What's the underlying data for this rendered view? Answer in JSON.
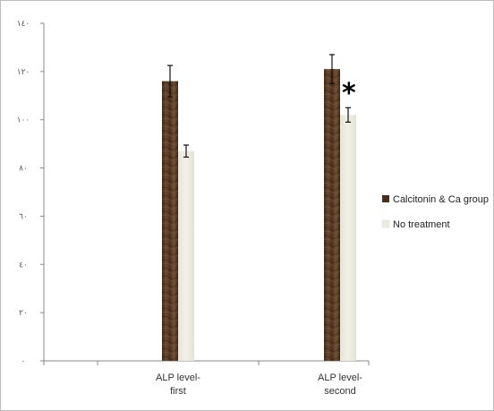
{
  "chart_data": {
    "type": "bar",
    "categories": [
      [
        "ALP level-",
        "first"
      ],
      [
        "ALP level-",
        "second"
      ]
    ],
    "series": [
      {
        "name": "Calcitonin & Ca group",
        "values": [
          116,
          121
        ],
        "errors": [
          6.5,
          6
        ],
        "color": "#5a3a24"
      },
      {
        "name": "No treatment",
        "values": [
          87,
          102
        ],
        "errors": [
          2.5,
          3
        ],
        "color": "#ecebe0"
      }
    ],
    "ylim": [
      0,
      140
    ],
    "yticks": [
      0,
      20,
      40,
      60,
      80,
      100,
      120,
      140
    ],
    "ytick_labels": [
      "٠",
      "٢٠",
      "٤٠",
      "٦٠",
      "٨٠",
      "١٠٠",
      "١٢٠",
      "١٤٠"
    ],
    "grid": false,
    "legend": "right",
    "annotations": [
      {
        "text": "*",
        "category": 1
      }
    ]
  }
}
